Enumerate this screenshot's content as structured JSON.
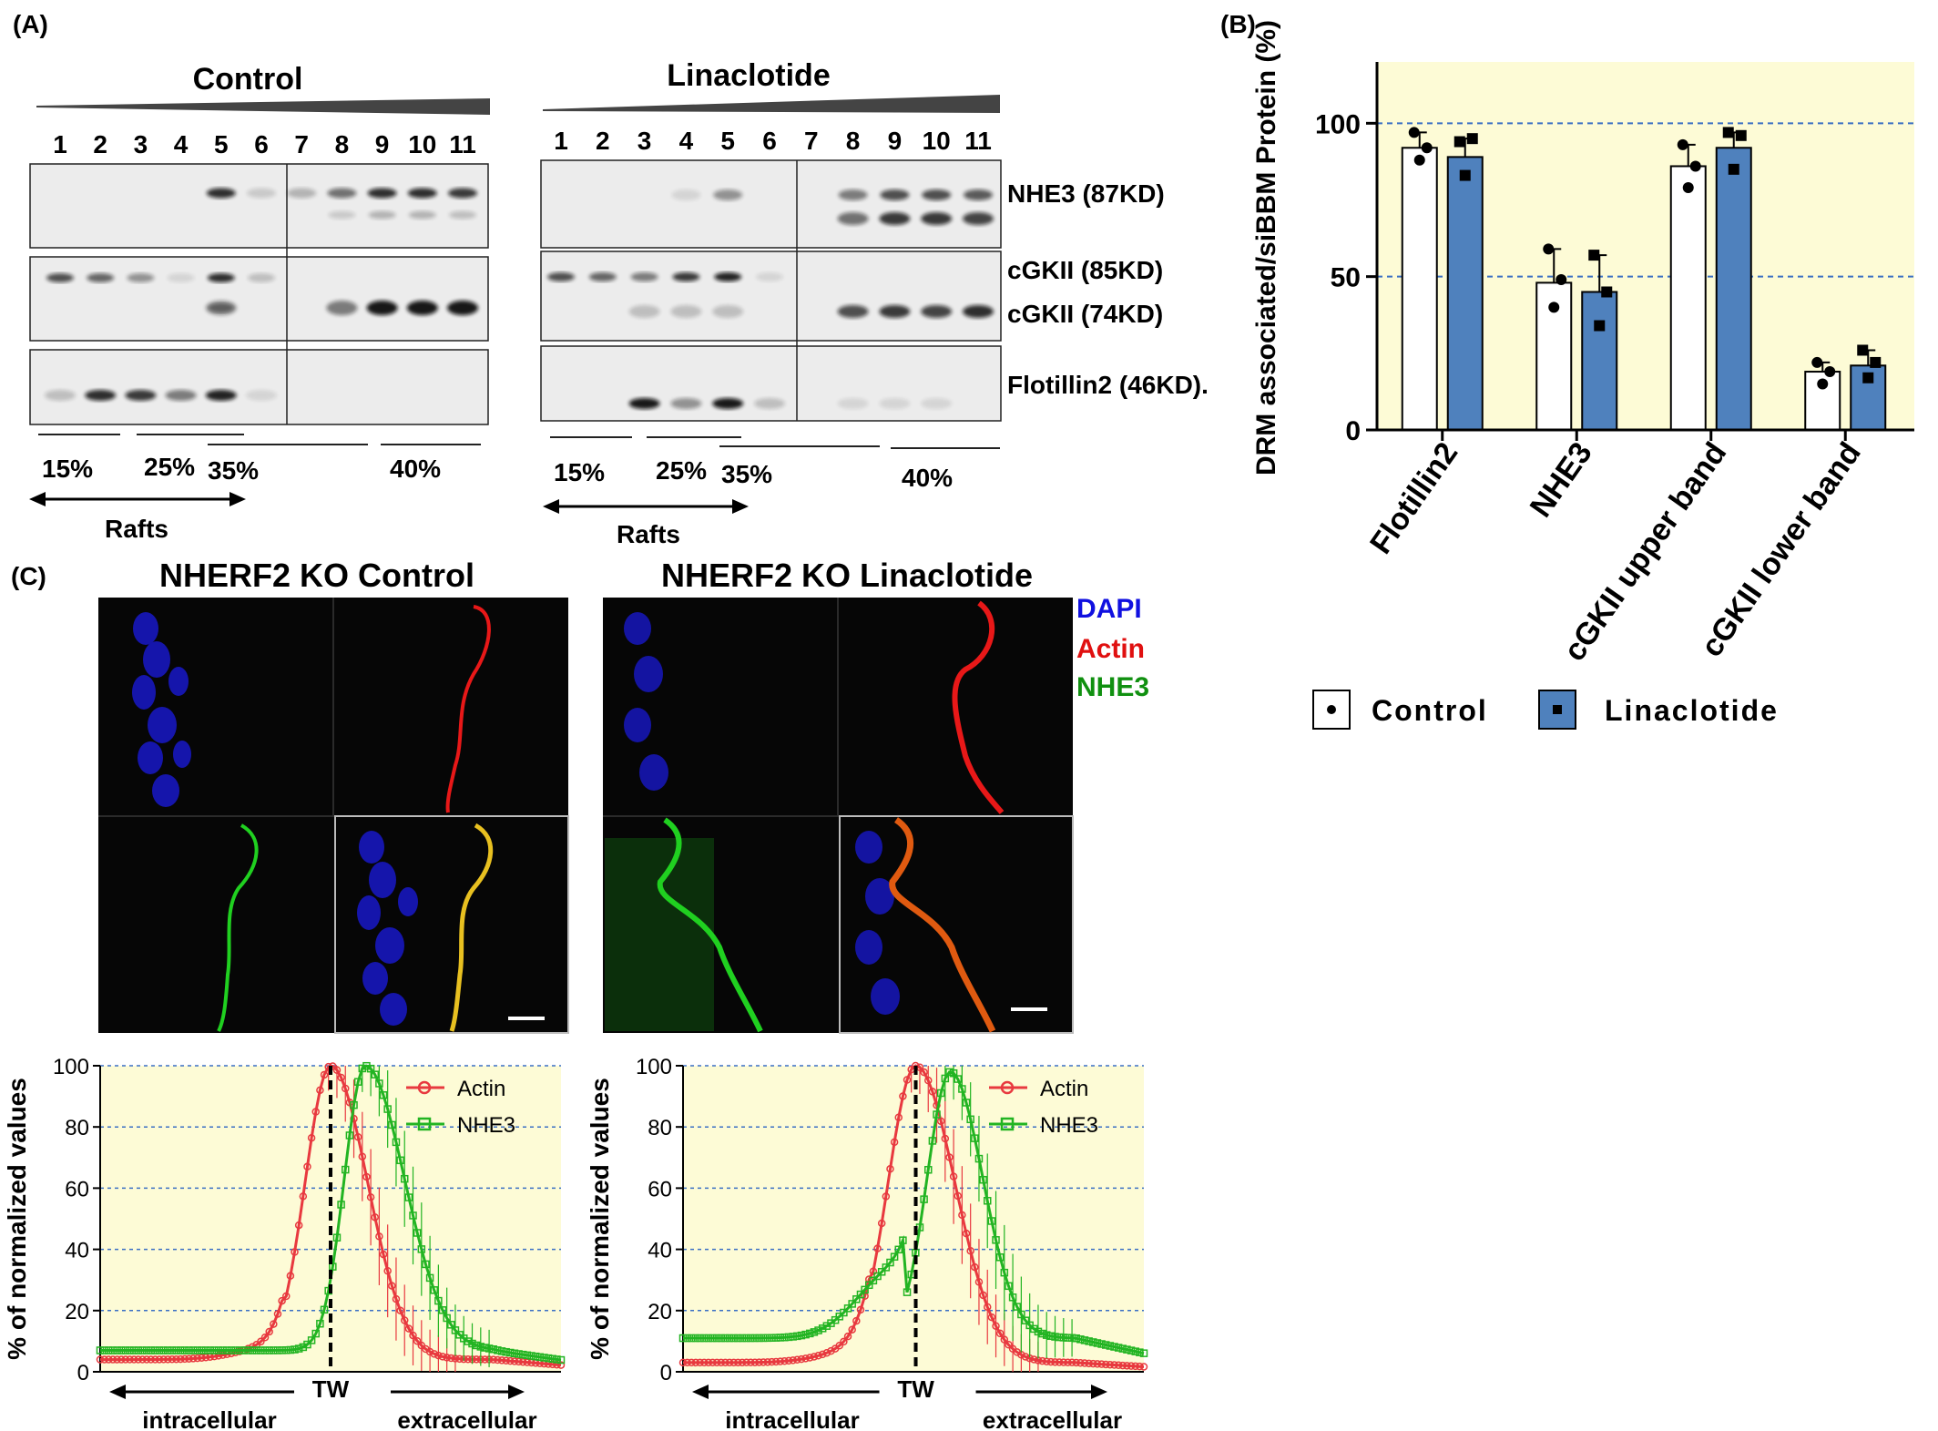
{
  "panelA": {
    "label": "(A)",
    "control": {
      "title": "Control",
      "lanes": [
        "1",
        "2",
        "3",
        "4",
        "5",
        "6",
        "7",
        "8",
        "9",
        "10",
        "11"
      ],
      "gradient": [
        "15%",
        "25%",
        "35%",
        "40%"
      ],
      "rafts": "Rafts"
    },
    "linaclotide": {
      "title": "Linaclotide",
      "lanes": [
        "1",
        "2",
        "3",
        "4",
        "5",
        "6",
        "7",
        "8",
        "9",
        "10",
        "11"
      ],
      "gradient": [
        "15%",
        "25%",
        "35%",
        "40%"
      ],
      "rafts": "Rafts"
    },
    "bands": {
      "nhe3": "NHE3  (87KD)",
      "cgkii85": "cGKII (85KD)",
      "cgkii74": "cGKII (74KD)",
      "flot2": "Flotillin2 (46KD)."
    }
  },
  "panelB": {
    "label": "(B)",
    "chart_data": {
      "type": "bar",
      "categories": [
        "Flotillin2",
        "NHE3",
        "cGKII upper band",
        "cGKII lower band"
      ],
      "series": [
        {
          "name": "Control",
          "values": [
            92,
            48,
            86,
            19
          ],
          "points": [
            [
              97,
              92,
              88
            ],
            [
              59,
              49,
              40
            ],
            [
              93,
              86,
              79
            ],
            [
              22,
              19,
              15
            ]
          ],
          "color": "#ffffff"
        },
        {
          "name": "Linaclotide",
          "values": [
            89,
            45,
            92,
            21
          ],
          "points": [
            [
              94,
              95,
              83
            ],
            [
              57,
              45,
              34
            ],
            [
              97,
              96,
              85
            ],
            [
              26,
              22,
              17
            ]
          ],
          "color": "#4f81bd"
        }
      ],
      "ylabel": "DRM associated/siBBM Protein (%)",
      "ylim": [
        0,
        120
      ],
      "yticks": [
        0,
        50,
        100
      ],
      "gridlines": [
        50,
        100
      ],
      "legend": "bottom"
    }
  },
  "panelC": {
    "label": "(C)",
    "title_control": "NHERF2 KO Control",
    "title_lina": "NHERF2 KO Linaclotide",
    "stains": {
      "dapi": "DAPI",
      "actin": "Actin",
      "nhe3": "NHE3"
    },
    "colors": {
      "dapi": "#1010e0",
      "actin": "#e01010",
      "nhe3": "#10a010"
    },
    "plots": [
      {
        "chart_data": {
          "type": "line",
          "ylabel": "% of normalized values",
          "ylim": [
            0,
            100
          ],
          "yticks": [
            0,
            20,
            40,
            60,
            80,
            100
          ],
          "series": [
            {
              "name": "Actin",
              "color": "#e8393f",
              "peak_x": 0.5,
              "peak": 100,
              "width_left": 0.055,
              "width_right": 0.08,
              "base": 4,
              "ridge": 4
            },
            {
              "name": "NHE3",
              "color": "#22b422",
              "peak_x": 0.575,
              "peak": 100,
              "width_left": 0.045,
              "width_right": 0.085,
              "base": 7,
              "ridge": 0
            }
          ],
          "marker_label": "TW",
          "left_label": "intracellular",
          "right_label": "extracellular"
        }
      },
      {
        "chart_data": {
          "type": "line",
          "ylabel": "% of normalized values",
          "ylim": [
            0,
            100
          ],
          "yticks": [
            0,
            20,
            40,
            60,
            80,
            100
          ],
          "series": [
            {
              "name": "Actin",
              "color": "#e8393f",
              "peak_x": 0.505,
              "peak": 100,
              "width_left": 0.06,
              "width_right": 0.085,
              "base": 3,
              "ridge": 4
            },
            {
              "name": "NHE3",
              "color": "#22b422",
              "peak_x": 0.58,
              "peak": 98,
              "width_left": 0.05,
              "width_right": 0.07,
              "base": 11,
              "ridge": 22
            }
          ],
          "marker_label": "TW",
          "left_label": "intracellular",
          "right_label": "extracellular"
        }
      }
    ]
  }
}
